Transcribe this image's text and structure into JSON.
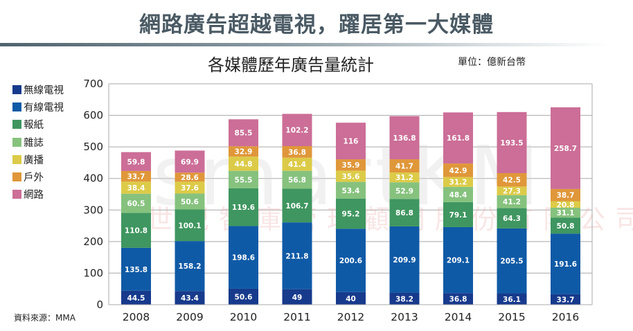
{
  "header": {
    "title": "網路廣告超越電視，躍居第一大媒體"
  },
  "chart_data": {
    "type": "bar",
    "stacked": true,
    "title": "各媒體歷年廣告量統計",
    "unit_label": "單位：億新台幣",
    "xlabel": "",
    "ylabel": "",
    "ylim": [
      0,
      700
    ],
    "yticks": [
      0,
      100,
      200,
      300,
      400,
      500,
      600,
      700
    ],
    "grid": true,
    "legend_position": "left",
    "categories": [
      "2008",
      "2009",
      "2010",
      "2011",
      "2012",
      "2013",
      "2014",
      "2015",
      "2016"
    ],
    "series": [
      {
        "name": "無線電視",
        "color": "#173a8c",
        "values": [
          44.5,
          43.4,
          50.6,
          49,
          40,
          38.2,
          36.8,
          36.1,
          33.7
        ],
        "labels": [
          "44.5",
          "43.4",
          "50.6",
          "49",
          "40",
          "38.2",
          "36.8",
          "36.1",
          "33.7"
        ]
      },
      {
        "name": "有線電視",
        "color": "#0f5aa6",
        "values": [
          135.8,
          158.2,
          198.6,
          211.8,
          200.6,
          209.9,
          209.1,
          205.5,
          191.6
        ],
        "labels": [
          "135.8",
          "158.2",
          "198.6",
          "211.8",
          "200.6",
          "209.9",
          "209.1",
          "205.5",
          "191.6"
        ]
      },
      {
        "name": "報紙",
        "color": "#3f9660",
        "values": [
          110.8,
          100.1,
          119.6,
          106.7,
          95.2,
          86.8,
          79.1,
          64.3,
          50.8
        ],
        "labels": [
          "110.8",
          "100.1",
          "119.6",
          "106.7",
          "95.2",
          "86.8",
          "79.1",
          "64.3",
          "50.8"
        ]
      },
      {
        "name": "雜誌",
        "color": "#86c27e",
        "values": [
          60.5,
          50.6,
          55.5,
          56.8,
          53.4,
          52.9,
          48.4,
          41.2,
          31.1
        ],
        "labels": [
          "60.5",
          "50.6",
          "55.5",
          "56.8",
          "53.4",
          "52.9",
          "48.4",
          "41.2",
          "31.1"
        ]
      },
      {
        "name": "廣播",
        "color": "#dccb48",
        "values": [
          38.4,
          37.6,
          44.8,
          41.4,
          35.6,
          31.2,
          31.2,
          27.3,
          20.8
        ],
        "labels": [
          "38.4",
          "37.6",
          "44.8",
          "41.4",
          "35.6",
          "31.2",
          "31.2",
          "27.3",
          "20.8"
        ]
      },
      {
        "name": "戶外",
        "color": "#e0973a",
        "values": [
          33.7,
          28.6,
          32.9,
          36.8,
          35.9,
          41.7,
          42.9,
          42.5,
          38.7
        ],
        "labels": [
          "33.7",
          "28.6",
          "32.9",
          "36.8",
          "35.9",
          "41.7",
          "42.9",
          "42.5",
          "38.7"
        ]
      },
      {
        "name": "網路",
        "color": "#cc6e97",
        "values": [
          59.8,
          69.9,
          85.5,
          102.2,
          116,
          136.8,
          161.8,
          193.5,
          258.7
        ],
        "labels": [
          "59.8",
          "69.9",
          "85.5",
          "102.2",
          "116",
          "136.8",
          "161.8",
          "193.5",
          "258.7"
        ]
      }
    ],
    "source": "資料來源：MMA"
  },
  "watermark": {
    "brand": "smartKM",
    "company": "世紀智庫管理顧問股份有限公司"
  }
}
